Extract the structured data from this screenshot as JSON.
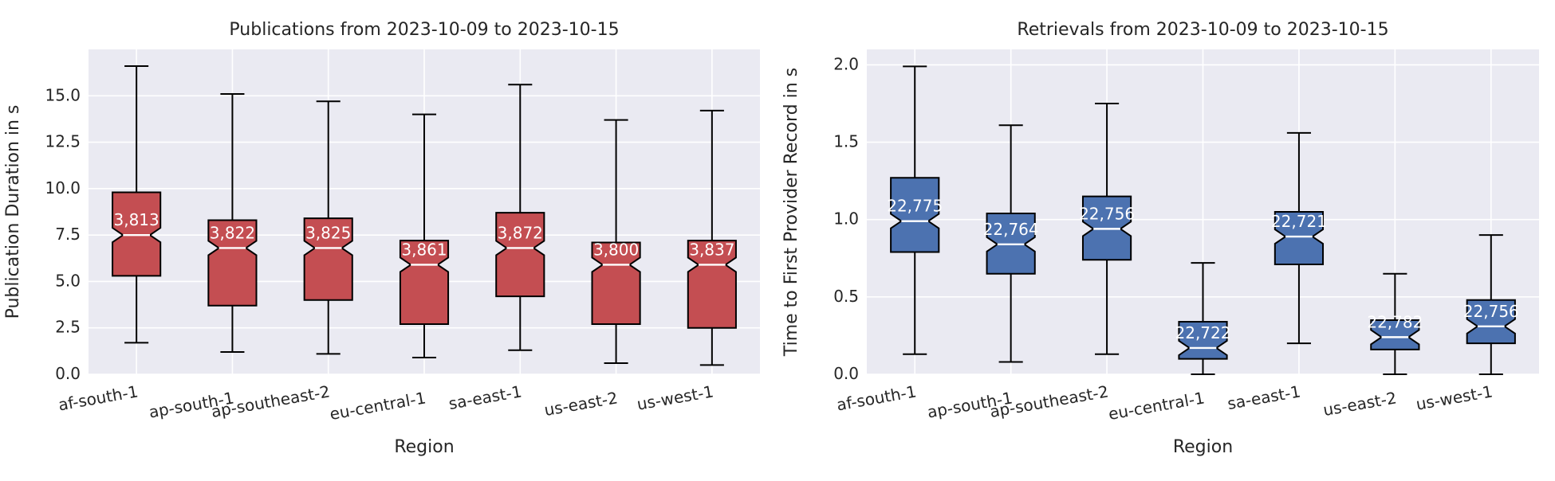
{
  "chart_data": [
    {
      "type": "box",
      "title": "Publications from 2023-10-09 to 2023-10-15",
      "xlabel": "Region",
      "ylabel": "Publication Duration in s",
      "ylim": [
        0,
        17.5
      ],
      "yticks": [
        0,
        2.5,
        5,
        7.5,
        10,
        12.5,
        15
      ],
      "ytick_labels": [
        "0.0",
        "2.5",
        "5.0",
        "7.5",
        "10.0",
        "12.5",
        "15.0"
      ],
      "grid": true,
      "notched": true,
      "box_color": "#c44e52",
      "categories": [
        "af-south-1",
        "ap-south-1",
        "ap-southeast-2",
        "eu-central-1",
        "sa-east-1",
        "us-east-2",
        "us-west-1"
      ],
      "boxes": [
        {
          "whislo": 1.7,
          "q1": 5.3,
          "med": 7.5,
          "q3": 9.8,
          "whishi": 16.6,
          "count": "3,813"
        },
        {
          "whislo": 1.2,
          "q1": 3.7,
          "med": 6.8,
          "q3": 8.3,
          "whishi": 15.1,
          "count": "3,822"
        },
        {
          "whislo": 1.1,
          "q1": 4.0,
          "med": 6.8,
          "q3": 8.4,
          "whishi": 14.7,
          "count": "3,825"
        },
        {
          "whislo": 0.9,
          "q1": 2.7,
          "med": 5.9,
          "q3": 7.2,
          "whishi": 14.0,
          "count": "3,861"
        },
        {
          "whislo": 1.3,
          "q1": 4.2,
          "med": 6.8,
          "q3": 8.7,
          "whishi": 15.6,
          "count": "3,872"
        },
        {
          "whislo": 0.6,
          "q1": 2.7,
          "med": 5.9,
          "q3": 7.1,
          "whishi": 13.7,
          "count": "3,800"
        },
        {
          "whislo": 0.5,
          "q1": 2.5,
          "med": 5.9,
          "q3": 7.2,
          "whishi": 14.2,
          "count": "3,837"
        }
      ]
    },
    {
      "type": "box",
      "title": "Retrievals from 2023-10-09 to 2023-10-15",
      "xlabel": "Region",
      "ylabel": "Time to First Provider Record in s",
      "ylim": [
        0,
        2.1
      ],
      "yticks": [
        0,
        0.5,
        1,
        1.5,
        2
      ],
      "ytick_labels": [
        "0.0",
        "0.5",
        "1.0",
        "1.5",
        "2.0"
      ],
      "grid": true,
      "notched": true,
      "box_color": "#4c72b0",
      "categories": [
        "af-south-1",
        "ap-south-1",
        "ap-southeast-2",
        "eu-central-1",
        "sa-east-1",
        "us-east-2",
        "us-west-1"
      ],
      "boxes": [
        {
          "whislo": 0.13,
          "q1": 0.79,
          "med": 0.99,
          "q3": 1.27,
          "whishi": 1.99,
          "count": "22,775"
        },
        {
          "whislo": 0.08,
          "q1": 0.65,
          "med": 0.84,
          "q3": 1.04,
          "whishi": 1.61,
          "count": "22,764"
        },
        {
          "whislo": 0.13,
          "q1": 0.74,
          "med": 0.94,
          "q3": 1.15,
          "whishi": 1.75,
          "count": "22,756"
        },
        {
          "whislo": 0.0,
          "q1": 0.1,
          "med": 0.17,
          "q3": 0.34,
          "whishi": 0.72,
          "count": "22,722"
        },
        {
          "whislo": 0.2,
          "q1": 0.71,
          "med": 0.89,
          "q3": 1.05,
          "whishi": 1.56,
          "count": "22,721"
        },
        {
          "whislo": 0.0,
          "q1": 0.16,
          "med": 0.24,
          "q3": 0.35,
          "whishi": 0.65,
          "count": "22,782"
        },
        {
          "whislo": 0.0,
          "q1": 0.2,
          "med": 0.31,
          "q3": 0.48,
          "whishi": 0.9,
          "count": "22,756"
        }
      ]
    }
  ]
}
